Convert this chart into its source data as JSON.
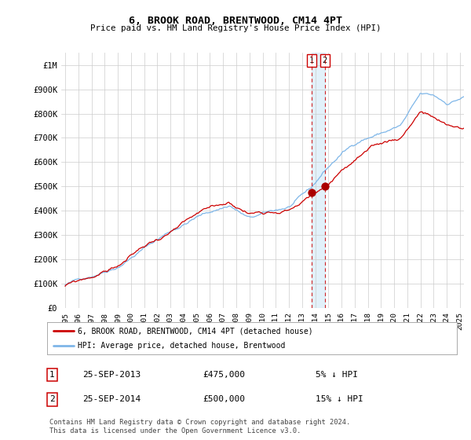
{
  "title": "6, BROOK ROAD, BRENTWOOD, CM14 4PT",
  "subtitle": "Price paid vs. HM Land Registry's House Price Index (HPI)",
  "legend_line1": "6, BROOK ROAD, BRENTWOOD, CM14 4PT (detached house)",
  "legend_line2": "HPI: Average price, detached house, Brentwood",
  "sale1_label": "1",
  "sale1_date": "25-SEP-2013",
  "sale1_price": "£475,000",
  "sale1_hpi": "5% ↓ HPI",
  "sale2_label": "2",
  "sale2_date": "25-SEP-2014",
  "sale2_price": "£500,000",
  "sale2_hpi": "15% ↓ HPI",
  "footnote": "Contains HM Land Registry data © Crown copyright and database right 2024.\nThis data is licensed under the Open Government Licence v3.0.",
  "sale1_x": 2013.73,
  "sale1_y": 475000,
  "sale2_x": 2014.73,
  "sale2_y": 500000,
  "ylim": [
    0,
    1050000
  ],
  "xlim_left": 1994.7,
  "xlim_right": 2025.3,
  "yticks": [
    0,
    100000,
    200000,
    300000,
    400000,
    500000,
    600000,
    700000,
    800000,
    900000,
    1000000
  ],
  "ytick_labels": [
    "£0",
    "£100K",
    "£200K",
    "£300K",
    "£400K",
    "£500K",
    "£600K",
    "£700K",
    "£800K",
    "£900K",
    "£1M"
  ],
  "hpi_color": "#7EB6E8",
  "price_color": "#CC0000",
  "sale_marker_color": "#AA0000",
  "vline_color": "#CC0000",
  "shade_color": "#D0E8F8",
  "grid_color": "#CCCCCC",
  "bg_color": "#FFFFFF"
}
